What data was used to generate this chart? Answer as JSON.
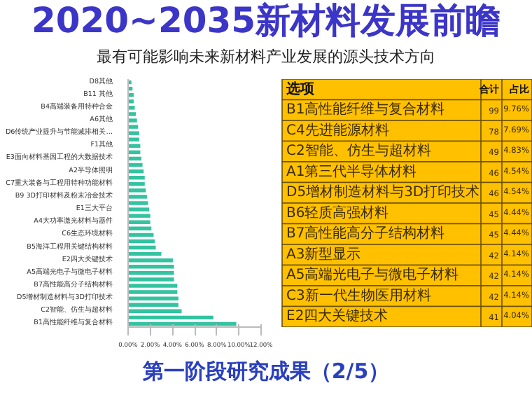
{
  "chart_data": [
    {
      "type": "bar",
      "orientation": "horizontal",
      "title": "2020~2035新材料发展前瞻",
      "subtitle": "最有可能影响未来新材料产业发展的源头技术方向",
      "annotations": [
        "第一阶段研究成果（2/5）"
      ],
      "color": "#33c3a0",
      "categories": [
        "D8其他",
        null,
        "B11 其他",
        null,
        "B4高端装备用特种合金",
        null,
        "A6其他",
        null,
        "D6传统产业提升与节能减排相关…",
        null,
        "F1其他",
        null,
        "E3面向材料基因工程的大数据技术",
        null,
        "A2半导体照明",
        null,
        "C7重大装备与工程用特种功能材料",
        null,
        "B9 3D打印材料及粉末冶金技术",
        null,
        "E1三大平台",
        null,
        "A4大功率激光材料与器件",
        null,
        "C6生态环境材料",
        null,
        "B5海洋工程用关键结构材料",
        null,
        "E2四大关键技术",
        null,
        "A5高端光电子与微电子材料",
        null,
        "B7高性能高分子结构材料",
        null,
        "D5增材制造材料与3D打印技术",
        null,
        "C2智能、仿生与超材料",
        null,
        "B1高性能纤维与复合材料"
      ],
      "values": [
        0.3,
        0.4,
        0.5,
        0.5,
        0.6,
        0.7,
        0.8,
        0.9,
        1.0,
        1.0,
        1.1,
        1.1,
        1.2,
        1.3,
        1.4,
        1.5,
        1.5,
        1.6,
        1.7,
        1.8,
        1.9,
        2.0,
        2.0,
        2.1,
        2.3,
        2.4,
        2.5,
        3.0,
        4.04,
        4.14,
        4.14,
        4.14,
        4.44,
        4.44,
        4.54,
        4.54,
        4.83,
        7.69,
        9.76
      ],
      "xlim": [
        0,
        12
      ],
      "xticks": [
        {
          "value": 0,
          "label": "0.00%"
        },
        {
          "value": 2,
          "label": "2.00%"
        },
        {
          "value": 4,
          "label": "4.00%"
        },
        {
          "value": 6,
          "label": "6.00%"
        },
        {
          "value": 8,
          "label": "8.00%"
        },
        {
          "value": 10,
          "label": "10.00%"
        },
        {
          "value": 12,
          "label": "12.00%"
        }
      ]
    },
    {
      "type": "other",
      "data_labels": true,
      "annotations": [
        "选项"
      ],
      "categories": [
        "B1高性能纤维与复合材料",
        "C4先进能源材料",
        "C2智能、仿生与超材料",
        "A1第三代半导体材料",
        "D5增材制造材料与3D打印技术",
        "B6轻质高强材料",
        "B7高性能高分子结构材料",
        "A3新型显示",
        "A5高端光电子与微电子材料",
        "C3新一代生物医用材料",
        "E2四大关键技术"
      ],
      "series": [
        {
          "name": "合计",
          "values": [
            99,
            78,
            49,
            46,
            46,
            45,
            45,
            42,
            42,
            42,
            41
          ]
        },
        {
          "name": "占比",
          "values": [
            9.76,
            7.69,
            4.83,
            4.54,
            4.54,
            4.44,
            4.44,
            4.14,
            4.14,
            4.14,
            4.04
          ],
          "value_labels": [
            "9.76%",
            "7.69%",
            "4.83%",
            "4.54%",
            "4.54%",
            "4.44%",
            "4.44%",
            "4.14%",
            "4.14%",
            "4.14%",
            "4.04%"
          ]
        }
      ]
    }
  ]
}
